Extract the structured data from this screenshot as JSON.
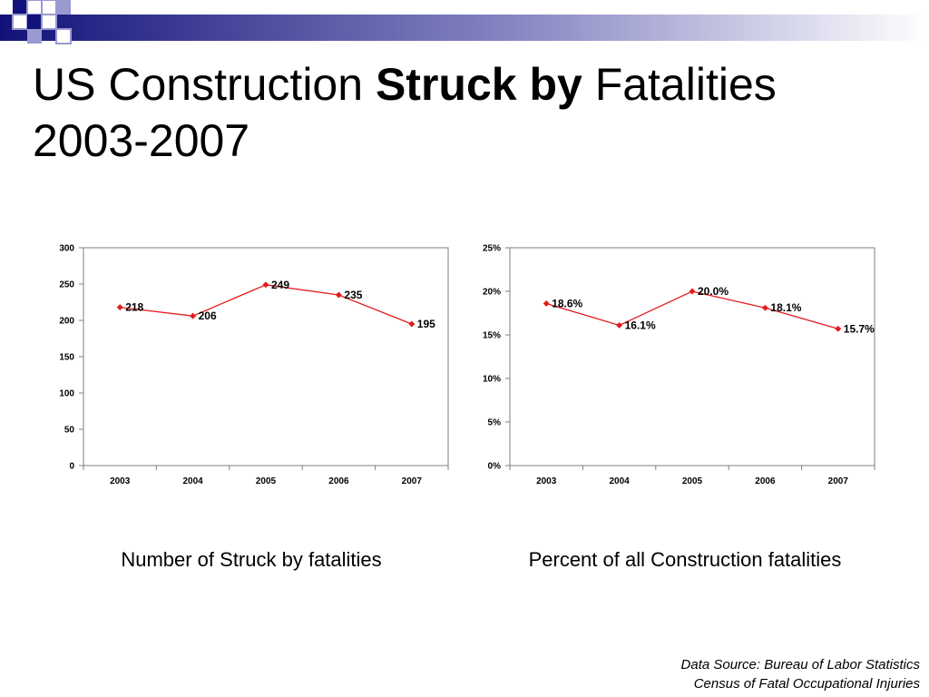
{
  "slide": {
    "title_part1": "US Construction ",
    "title_bold": "Struck by",
    "title_part2": " Fatalities",
    "title_line2": "2003-2007"
  },
  "captions": {
    "left": "Number of Struck by fatalities",
    "right": "Percent of all Construction fatalities"
  },
  "source": {
    "line1": "Data Source: Bureau of Labor Statistics",
    "line2": "Census of Fatal Occupational Injuries"
  },
  "colors": {
    "series": "#e41a1c",
    "deco_dark": "#12127a",
    "deco_light": "#9a9ad0"
  },
  "chart_data": [
    {
      "type": "line",
      "title": "",
      "xlabel": "",
      "ylabel": "",
      "categories": [
        "2003",
        "2004",
        "2005",
        "2006",
        "2007"
      ],
      "series": [
        {
          "values": [
            218,
            206,
            249,
            235,
            195
          ]
        }
      ],
      "data_labels": [
        "218",
        "206",
        "249",
        "235",
        "195"
      ],
      "ylim": [
        0,
        300
      ],
      "yticks": [
        0,
        50,
        100,
        150,
        200,
        250,
        300
      ],
      "ytick_labels": [
        "0",
        "50",
        "100",
        "150",
        "200",
        "250",
        "300"
      ],
      "grid": false,
      "legend": "none"
    },
    {
      "type": "line",
      "title": "",
      "xlabel": "",
      "ylabel": "",
      "categories": [
        "2003",
        "2004",
        "2005",
        "2006",
        "2007"
      ],
      "series": [
        {
          "values": [
            18.6,
            16.1,
            20.0,
            18.1,
            15.7
          ]
        }
      ],
      "data_labels": [
        "18.6%",
        "16.1%",
        "20.0%",
        "18.1%",
        "15.7%"
      ],
      "ylim": [
        0,
        25
      ],
      "yticks": [
        0,
        5,
        10,
        15,
        20,
        25
      ],
      "ytick_labels": [
        "0%",
        "5%",
        "10%",
        "15%",
        "20%",
        "25%"
      ],
      "grid": false,
      "legend": "none"
    }
  ]
}
